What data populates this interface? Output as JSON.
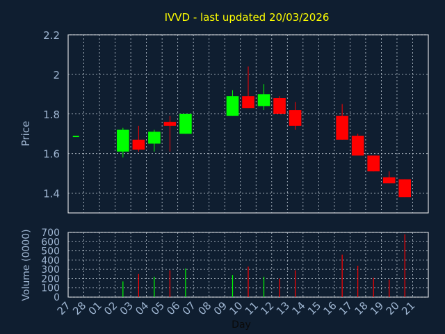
{
  "chart_data": [
    {
      "type": "candlestick",
      "title": "IVVD - last updated 20/03/2026",
      "xlabel": "Day",
      "ylabel": "Price",
      "ylim": [
        1.3,
        2.2
      ],
      "yticks": [
        1.4,
        1.6,
        1.8,
        2.0,
        2.2
      ],
      "ytick_labels": [
        "1.4",
        "1.6",
        "1.8",
        "2",
        "2.2"
      ],
      "grid": true,
      "categories": [
        "27",
        "28",
        "01",
        "02",
        "03",
        "04",
        "05",
        "06",
        "07",
        "08",
        "09",
        "10",
        "11",
        "12",
        "13",
        "14",
        "15",
        "16",
        "17",
        "18",
        "19",
        "20",
        "21"
      ],
      "candles": [
        {
          "day": "27",
          "open": 1.69,
          "high": 1.69,
          "low": 1.69,
          "close": 1.69
        },
        {
          "day": "02",
          "open": 1.61,
          "high": 1.73,
          "low": 1.58,
          "close": 1.72
        },
        {
          "day": "03",
          "open": 1.67,
          "high": 1.74,
          "low": 1.61,
          "close": 1.62
        },
        {
          "day": "04",
          "open": 1.65,
          "high": 1.72,
          "low": 1.61,
          "close": 1.71
        },
        {
          "day": "05",
          "open": 1.76,
          "high": 1.79,
          "low": 1.61,
          "close": 1.74
        },
        {
          "day": "06",
          "open": 1.7,
          "high": 1.8,
          "low": 1.7,
          "close": 1.8
        },
        {
          "day": "09",
          "open": 1.79,
          "high": 1.92,
          "low": 1.79,
          "close": 1.89
        },
        {
          "day": "10",
          "open": 1.89,
          "high": 2.04,
          "low": 1.83,
          "close": 1.83
        },
        {
          "day": "11",
          "open": 1.84,
          "high": 1.95,
          "low": 1.82,
          "close": 1.9
        },
        {
          "day": "12",
          "open": 1.88,
          "high": 1.89,
          "low": 1.8,
          "close": 1.8
        },
        {
          "day": "13",
          "open": 1.82,
          "high": 1.86,
          "low": 1.72,
          "close": 1.74
        },
        {
          "day": "16",
          "open": 1.79,
          "high": 1.85,
          "low": 1.67,
          "close": 1.67
        },
        {
          "day": "17",
          "open": 1.69,
          "high": 1.7,
          "low": 1.59,
          "close": 1.59
        },
        {
          "day": "18",
          "open": 1.59,
          "high": 1.59,
          "low": 1.51,
          "close": 1.51
        },
        {
          "day": "19",
          "open": 1.48,
          "high": 1.51,
          "low": 1.45,
          "close": 1.45
        },
        {
          "day": "20",
          "open": 1.47,
          "high": 1.47,
          "low": 1.38,
          "close": 1.38
        }
      ],
      "up_color": "#00ff00",
      "down_color": "#ff0000"
    },
    {
      "type": "bar",
      "ylabel": "Volume (0000)",
      "xlabel": "Day",
      "ylim": [
        0,
        700
      ],
      "yticks": [
        0,
        100,
        200,
        300,
        400,
        500,
        600,
        700
      ],
      "ytick_labels": [
        "0",
        "100",
        "200",
        "300",
        "400",
        "500",
        "600",
        "700"
      ],
      "grid": true,
      "categories": [
        "27",
        "28",
        "01",
        "02",
        "03",
        "04",
        "05",
        "06",
        "07",
        "08",
        "09",
        "10",
        "11",
        "12",
        "13",
        "14",
        "15",
        "16",
        "17",
        "18",
        "19",
        "20",
        "21"
      ],
      "series": [
        {
          "values": [
            {
              "day": "02",
              "value": 170,
              "direction": "up"
            },
            {
              "day": "03",
              "value": 250,
              "direction": "down"
            },
            {
              "day": "04",
              "value": 220,
              "direction": "up"
            },
            {
              "day": "05",
              "value": 290,
              "direction": "down"
            },
            {
              "day": "06",
              "value": 310,
              "direction": "up"
            },
            {
              "day": "09",
              "value": 240,
              "direction": "up"
            },
            {
              "day": "10",
              "value": 330,
              "direction": "down"
            },
            {
              "day": "11",
              "value": 220,
              "direction": "up"
            },
            {
              "day": "12",
              "value": 200,
              "direction": "down"
            },
            {
              "day": "13",
              "value": 290,
              "direction": "down"
            },
            {
              "day": "16",
              "value": 460,
              "direction": "down"
            },
            {
              "day": "17",
              "value": 340,
              "direction": "down"
            },
            {
              "day": "18",
              "value": 210,
              "direction": "down"
            },
            {
              "day": "19",
              "value": 190,
              "direction": "down"
            },
            {
              "day": "20",
              "value": 680,
              "direction": "down"
            }
          ]
        }
      ]
    }
  ],
  "colors": {
    "background": "#0f1e30",
    "title": "#ffff00",
    "axis_text": "#9fb6d2",
    "axis_line": "#ffffff",
    "grid": "#c8d2dc"
  }
}
